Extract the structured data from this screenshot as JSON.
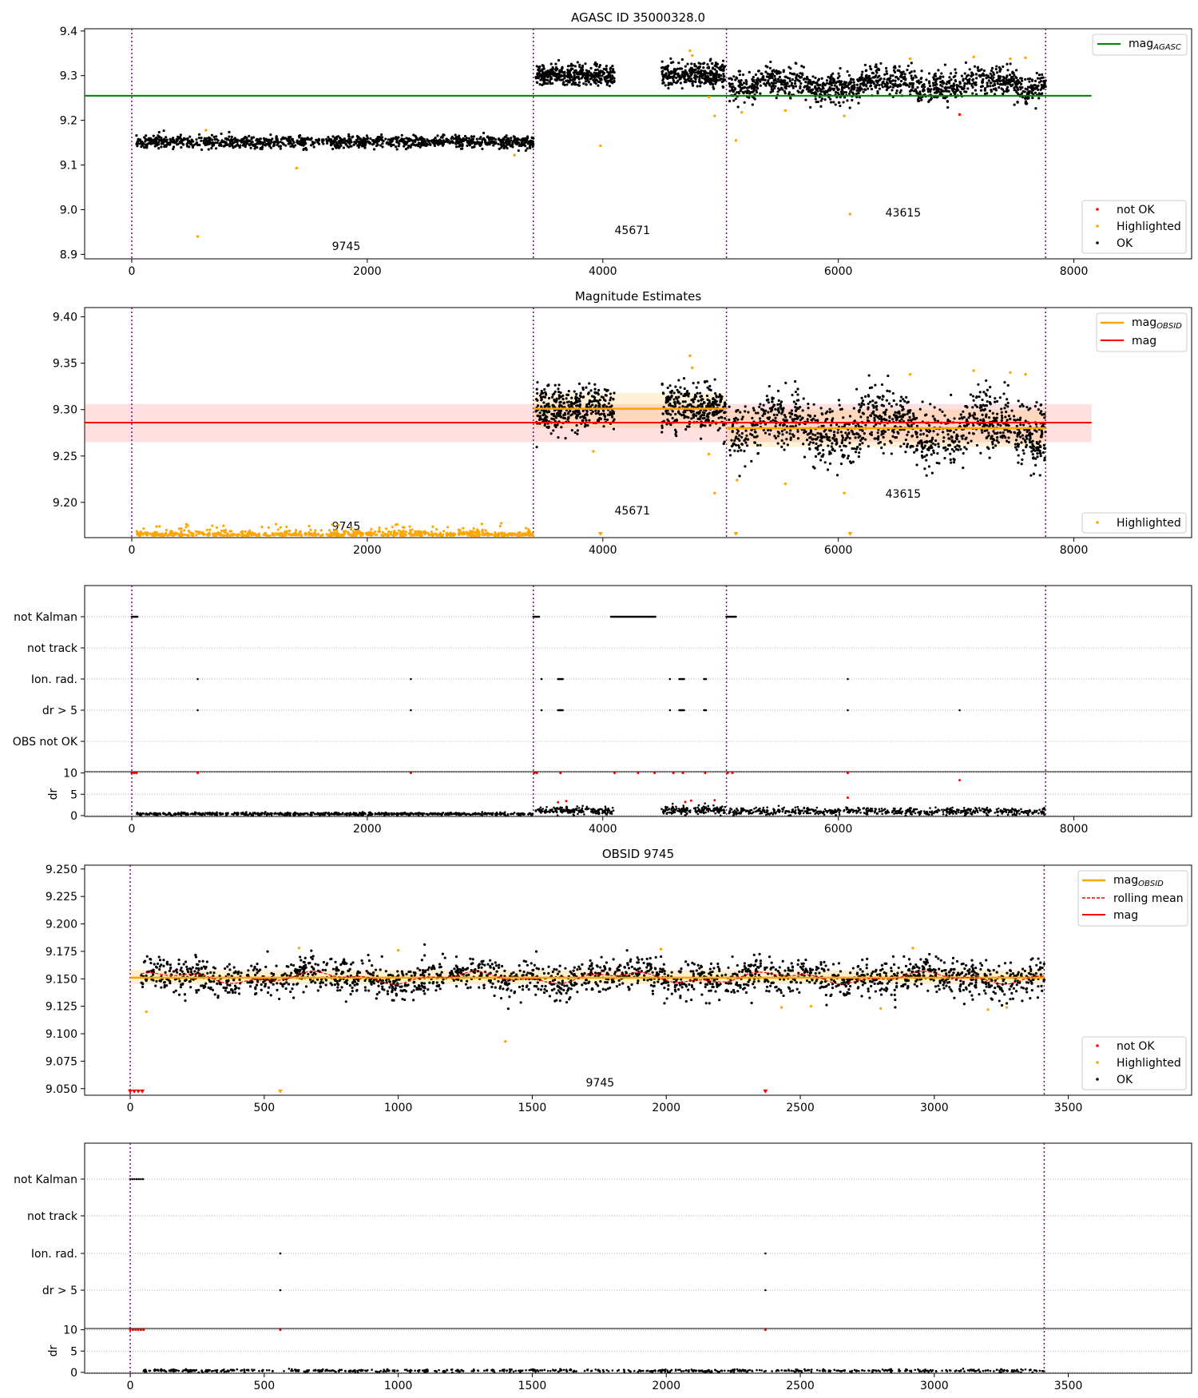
{
  "chart_data": [
    {
      "type": "scatter",
      "title": "AGASC ID 35000328.0",
      "xlabel": "",
      "ylabel": "",
      "xlim": [
        -400,
        9000
      ],
      "ylim": [
        8.89,
        9.405
      ],
      "x_ticks": [
        0,
        2000,
        4000,
        6000,
        8000
      ],
      "y_ticks": [
        8.9,
        9.0,
        9.1,
        9.2,
        9.3,
        9.4
      ],
      "y_tick_labels": [
        "8.9",
        "9.0",
        "9.1",
        "9.2",
        "9.3",
        "9.4"
      ],
      "obs_boundaries": [
        0,
        3410,
        5050,
        7760
      ],
      "obs_labels": [
        {
          "text": "9745",
          "x": 1700,
          "y": 8.91
        },
        {
          "text": "45671",
          "x": 4100,
          "y": 8.945
        },
        {
          "text": "43615",
          "x": 6400,
          "y": 8.985
        }
      ],
      "horizontal_lines": [
        {
          "name": "mag_AGASC",
          "y": 9.255,
          "x_range": [
            -400,
            8150
          ],
          "color": "#008000"
        }
      ],
      "series": [
        {
          "name": "OK",
          "color": "#000000",
          "segments": [
            {
              "x_range": [
                40,
                3410
              ],
              "mean": 9.152,
              "std": 0.007,
              "count": 1100
            },
            {
              "x_range": [
                3430,
                4100
              ],
              "mean": 9.301,
              "std": 0.012,
              "count": 380
            },
            {
              "x_range": [
                4500,
                5040
              ],
              "mean": 9.302,
              "std": 0.013,
              "count": 330
            },
            {
              "x_range": [
                5070,
                7760
              ],
              "mean": 9.28,
              "std": 0.016,
              "count": 1200
            }
          ]
        },
        {
          "name": "Highlighted",
          "color": "#ffa500",
          "points": [
            [
              560,
              8.94
            ],
            [
              630,
              9.178
            ],
            [
              1400,
              9.093
            ],
            [
              3250,
              9.122
            ],
            [
              3980,
              9.143
            ],
            [
              4740,
              9.356
            ],
            [
              4760,
              9.345
            ],
            [
              4900,
              9.252
            ],
            [
              4950,
              9.21
            ],
            [
              5130,
              9.155
            ],
            [
              5180,
              9.218
            ],
            [
              5550,
              9.222
            ],
            [
              6050,
              9.21
            ],
            [
              6100,
              8.99
            ],
            [
              6610,
              9.338
            ],
            [
              7150,
              9.342
            ],
            [
              7460,
              9.338
            ],
            [
              7590,
              9.34
            ]
          ]
        },
        {
          "name": "not OK",
          "color": "#ff0000",
          "points": [
            [
              7030,
              9.213
            ]
          ]
        }
      ],
      "legend_upper": [
        "mag_AGASC"
      ],
      "legend_lower": [
        "not OK",
        "Highlighted",
        "OK"
      ],
      "legend_placement": "upper-right and lower-right"
    },
    {
      "type": "scatter",
      "title": "Magnitude Estimates",
      "xlabel": "",
      "ylabel": "",
      "xlim": [
        -400,
        9000
      ],
      "ylim": [
        9.162,
        9.41
      ],
      "x_ticks": [
        0,
        2000,
        4000,
        6000,
        8000
      ],
      "y_ticks": [
        9.2,
        9.25,
        9.3,
        9.35,
        9.4
      ],
      "y_tick_labels": [
        "9.20",
        "9.25",
        "9.30",
        "9.35",
        "9.40"
      ],
      "obs_boundaries": [
        0,
        3410,
        5050,
        7760
      ],
      "obs_labels": [
        {
          "text": "9745",
          "x": 1700,
          "y": 9.17
        },
        {
          "text": "45671",
          "x": 4100,
          "y": 9.187
        },
        {
          "text": "43615",
          "x": 6400,
          "y": 9.205
        }
      ],
      "mag": {
        "value": 9.286,
        "band": [
          9.265,
          9.306
        ],
        "x_range": [
          -400,
          8150
        ],
        "color": "#ff0000"
      },
      "mag_obsid": [
        {
          "x_range": [
            3410,
            5050
          ],
          "value": 9.301,
          "band": [
            9.28,
            9.318
          ]
        },
        {
          "x_range": [
            5050,
            7760
          ],
          "value": 9.28,
          "band": [
            9.26,
            9.3
          ]
        }
      ],
      "series": [
        {
          "name": "OK",
          "color": "#000000",
          "segments": [
            {
              "x_range": [
                3430,
                4100
              ],
              "mean": 9.301,
              "std": 0.012,
              "count": 380
            },
            {
              "x_range": [
                4500,
                5040
              ],
              "mean": 9.302,
              "std": 0.013,
              "count": 330
            },
            {
              "x_range": [
                5070,
                7760
              ],
              "mean": 9.28,
              "std": 0.016,
              "count": 1200
            }
          ]
        },
        {
          "name": "Highlighted",
          "color": "#ffa500",
          "points": [
            [
              3920,
              9.255
            ],
            [
              4740,
              9.358
            ],
            [
              4760,
              9.345
            ],
            [
              4900,
              9.252
            ],
            [
              4950,
              9.21
            ],
            [
              5140,
              9.224
            ],
            [
              5550,
              9.22
            ],
            [
              6050,
              9.21
            ],
            [
              6610,
              9.338
            ],
            [
              7150,
              9.342
            ],
            [
              7460,
              9.34
            ],
            [
              7590,
              9.338
            ]
          ]
        }
      ],
      "legend": [
        "mag_OBSID",
        "mag",
        "Highlighted"
      ],
      "legend_placement": "upper-right and lower-right"
    },
    {
      "type": "scatter",
      "title": "",
      "xlim": [
        -400,
        9000
      ],
      "x_ticks": [
        0,
        2000,
        4000,
        6000,
        8000
      ],
      "flag_rows": [
        "not Kalman",
        "not track",
        "Ion. rad.",
        "dr > 5",
        "OBS not OK"
      ],
      "flags": {
        "not Kalman": [
          [
            0,
            50
          ],
          [
            3410,
            3460
          ],
          [
            4070,
            4450
          ],
          [
            5050,
            5130
          ]
        ],
        "not track": [],
        "Ion. rad.": [
          [
            560,
            560
          ],
          [
            2370,
            2370
          ],
          [
            3480,
            3480
          ],
          [
            3620,
            3660
          ],
          [
            4570,
            4570
          ],
          [
            4650,
            4690
          ],
          [
            4860,
            4880
          ],
          [
            6080,
            6080
          ]
        ],
        "dr > 5": [
          [
            560,
            560
          ],
          [
            2370,
            2370
          ],
          [
            3480,
            3480
          ],
          [
            3620,
            3660
          ],
          [
            4570,
            4570
          ],
          [
            4650,
            4690
          ],
          [
            4860,
            4880
          ],
          [
            6080,
            6080
          ],
          [
            7030,
            7030
          ]
        ],
        "OBS not OK": []
      },
      "dr_ylabel": "dr",
      "dr_ticks": [
        0,
        5,
        10
      ],
      "dr_ylim": [
        -0.2,
        10.3
      ],
      "dr_series": [
        {
          "name": "OK",
          "color": "#000000",
          "segments": [
            {
              "x_range": [
                40,
                3410
              ],
              "mean": 0.4,
              "count": 700
            },
            {
              "x_range": [
                3430,
                4100
              ],
              "mean": 1.2,
              "count": 180
            },
            {
              "x_range": [
                4500,
                5040
              ],
              "mean": 1.3,
              "count": 160
            },
            {
              "x_range": [
                5070,
                7760
              ],
              "mean": 1.0,
              "count": 600
            }
          ]
        },
        {
          "name": "not OK",
          "color": "#ff0000",
          "points": [
            [
              0,
              10
            ],
            [
              20,
              10
            ],
            [
              40,
              10
            ],
            [
              560,
              10
            ],
            [
              2370,
              10
            ],
            [
              3420,
              10
            ],
            [
              3440,
              10
            ],
            [
              3640,
              10
            ],
            [
              4100,
              10
            ],
            [
              4300,
              10
            ],
            [
              4440,
              10
            ],
            [
              4600,
              10
            ],
            [
              4680,
              10
            ],
            [
              4870,
              10
            ],
            [
              5060,
              10
            ],
            [
              5100,
              10
            ],
            [
              6080,
              10
            ],
            [
              6080,
              4.2
            ],
            [
              7030,
              8.3
            ],
            [
              3620,
              3.1
            ],
            [
              3690,
              3.4
            ],
            [
              4700,
              3.2
            ],
            [
              4750,
              3.5
            ],
            [
              4950,
              3.6
            ]
          ]
        }
      ]
    },
    {
      "type": "scatter",
      "title": "OBSID 9745",
      "xlabel": "",
      "ylabel": "",
      "xlim": [
        -170,
        3960
      ],
      "ylim": [
        9.044,
        9.2535
      ],
      "x_ticks": [
        0,
        500,
        1000,
        1500,
        2000,
        2500,
        3000,
        3500
      ],
      "y_ticks": [
        9.05,
        9.075,
        9.1,
        9.125,
        9.15,
        9.175,
        9.2,
        9.225,
        9.25
      ],
      "y_tick_labels": [
        "9.050",
        "9.075",
        "9.100",
        "9.125",
        "9.150",
        "9.175",
        "9.200",
        "9.225",
        "9.250"
      ],
      "obs_boundaries": [
        0,
        3410
      ],
      "obs_labels": [
        {
          "text": "9745",
          "x": 1700,
          "y": 9.052
        }
      ],
      "mag_obsid": {
        "value": 9.151,
        "band": [
          9.145,
          9.158
        ],
        "x_range": [
          0,
          3410
        ]
      },
      "series": [
        {
          "name": "OK",
          "color": "#000000",
          "segments": [
            {
              "x_range": [
                40,
                3410
              ],
              "mean": 9.151,
              "std": 0.008,
              "count": 2000
            }
          ]
        },
        {
          "name": "Highlighted",
          "color": "#ffa500",
          "points": [
            [
              60,
              9.12
            ],
            [
              630,
              9.178
            ],
            [
              1000,
              9.176
            ],
            [
              1400,
              9.093
            ],
            [
              1980,
              9.177
            ],
            [
              2430,
              9.124
            ],
            [
              2540,
              9.125
            ],
            [
              2800,
              9.123
            ],
            [
              2920,
              9.178
            ],
            [
              3200,
              9.122
            ],
            [
              3270,
              9.124
            ]
          ]
        },
        {
          "name": "rolling mean",
          "color": "#ff0000",
          "style": "dashed"
        },
        {
          "name": "not OK",
          "color": "#ff0000",
          "points": [
            [
              0,
              9.047
            ],
            [
              15,
              9.047
            ],
            [
              30,
              9.047
            ],
            [
              45,
              9.047
            ],
            [
              2370,
              9.047
            ]
          ]
        }
      ],
      "legend_upper": [
        "mag_OBSID",
        "rolling mean",
        "mag"
      ],
      "legend_lower": [
        "not OK",
        "Highlighted",
        "OK"
      ],
      "legend_placement": "upper-right and lower-right"
    },
    {
      "type": "scatter",
      "title": "",
      "xlim": [
        -170,
        3960
      ],
      "x_ticks": [
        0,
        500,
        1000,
        1500,
        2000,
        2500,
        3000,
        3500
      ],
      "flag_rows": [
        "not Kalman",
        "not track",
        "Ion. rad.",
        "dr > 5"
      ],
      "flags": {
        "not Kalman": [
          [
            0,
            50
          ]
        ],
        "not track": [],
        "Ion. rad.": [
          [
            560,
            560
          ],
          [
            2370,
            2370
          ]
        ],
        "dr > 5": [
          [
            560,
            560
          ],
          [
            2370,
            2370
          ]
        ]
      },
      "dr_ylabel": "dr",
      "dr_ticks": [
        0,
        5,
        10
      ],
      "dr_ylim": [
        -0.2,
        10.3
      ],
      "dr_series": [
        {
          "name": "OK",
          "color": "#000000",
          "segments": [
            {
              "x_range": [
                50,
                3410
              ],
              "mean": 0.4,
              "count": 700
            }
          ]
        },
        {
          "name": "not OK",
          "color": "#ff0000",
          "points": [
            [
              0,
              10
            ],
            [
              10,
              10
            ],
            [
              20,
              10
            ],
            [
              30,
              10
            ],
            [
              40,
              10
            ],
            [
              50,
              10
            ],
            [
              560,
              10
            ],
            [
              2370,
              10
            ]
          ]
        }
      ]
    }
  ],
  "legend_labels": {
    "mag_agasc_base": "mag",
    "mag_agasc_sub": "AGASC",
    "mag_obsid_base": "mag",
    "mag_obsid_sub": "OBSID",
    "mag": "mag",
    "rolling_mean": "rolling mean",
    "not_ok": "not OK",
    "highlighted": "Highlighted",
    "ok": "OK"
  }
}
